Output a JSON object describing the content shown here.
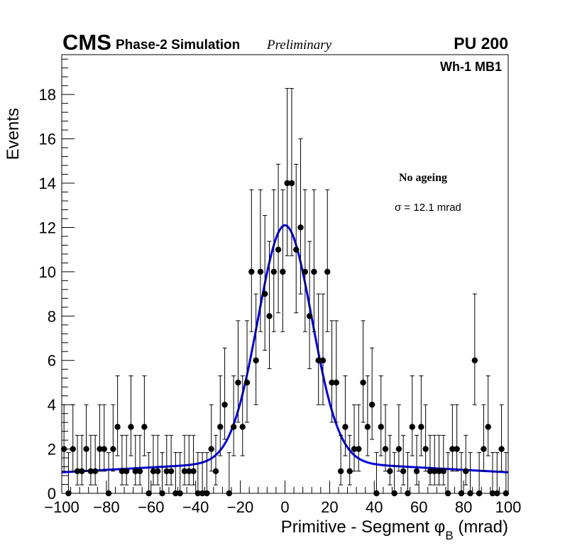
{
  "header": {
    "cms": "CMS",
    "phase": "Phase-2 Simulation",
    "preliminary": "Preliminary",
    "pileup": "PU 200"
  },
  "chart_data": {
    "type": "scatter",
    "title": "",
    "xlabel": "Primitive - Segment φ",
    "xlabel_sub": "B",
    "xlabel_unit": " (mrad)",
    "ylabel": "Events",
    "xlim": [
      -100,
      100
    ],
    "ylim": [
      0,
      19.8
    ],
    "x_ticks": [
      -100,
      -80,
      -60,
      -40,
      -20,
      0,
      20,
      40,
      60,
      80,
      100
    ],
    "x_tick_labels": [
      "−100",
      "−80",
      "−60",
      "−40",
      "−20",
      "0",
      "20",
      "40",
      "60",
      "80",
      "100"
    ],
    "y_ticks": [
      0,
      2,
      4,
      6,
      8,
      10,
      12,
      14,
      16,
      18
    ],
    "y_tick_labels": [
      "0",
      "2",
      "4",
      "6",
      "8",
      "10",
      "12",
      "14",
      "16",
      "18"
    ],
    "bin_width": 2,
    "bin_start": -100,
    "counts": [
      2,
      0,
      2,
      1,
      1,
      2,
      1,
      1,
      2,
      2,
      0,
      2,
      3,
      1,
      1,
      3,
      1,
      1,
      3,
      0,
      1,
      1,
      0,
      1,
      1,
      0,
      0,
      1,
      1,
      1,
      0,
      0,
      0,
      2,
      1,
      3,
      4,
      0,
      3,
      5,
      3,
      5,
      10,
      6,
      10,
      9,
      8,
      10,
      11,
      10,
      14,
      14,
      11,
      12,
      10,
      8,
      10,
      6,
      6,
      10,
      5,
      5,
      1,
      3,
      1,
      2,
      2,
      5,
      3,
      4,
      0,
      3,
      2,
      1,
      0,
      2,
      1,
      0,
      3,
      1,
      3,
      2,
      1,
      1,
      1,
      1,
      0,
      2,
      2,
      0,
      1,
      0,
      6,
      0,
      2,
      3,
      0,
      0,
      2,
      0
    ],
    "fit": {
      "name": "Fit",
      "color": "#0000e0",
      "peak": 12.1,
      "center": 0,
      "sigma_mrad": 12.1,
      "background_at_0": 1.5,
      "background_at_edge": 0.95
    },
    "legend": {
      "category": "Wh-1 MB1",
      "ageing": "No ageing",
      "sigma_text": "σ = 12.1 mrad"
    },
    "colors": {
      "markers": "#000000",
      "fit_line": "#0000e0"
    }
  }
}
